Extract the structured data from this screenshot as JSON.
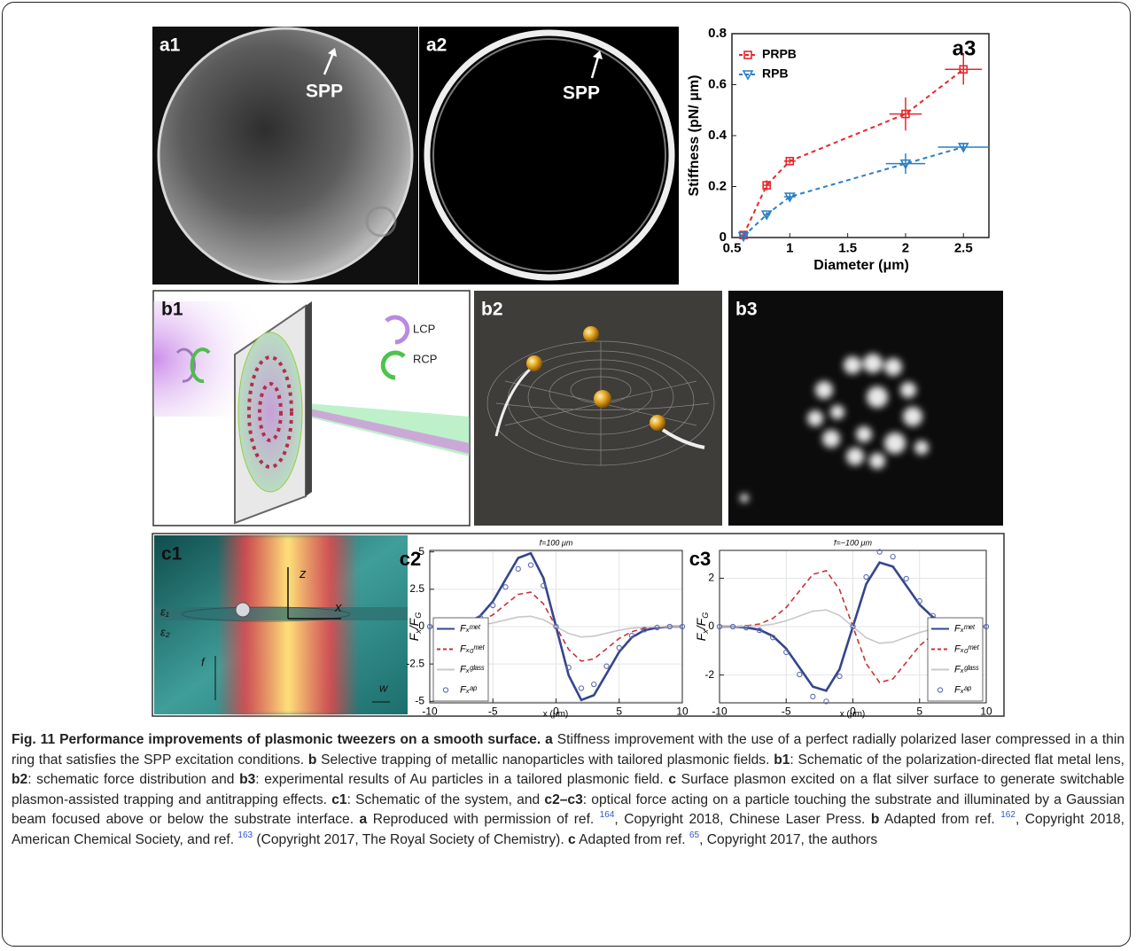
{
  "panels": {
    "a1": {
      "label": "a1",
      "annotation": "SPP"
    },
    "a2": {
      "label": "a2",
      "annotation": "SPP"
    },
    "b1": {
      "label": "b1",
      "legend": [
        "LCP",
        "RCP"
      ]
    },
    "b2": {
      "label": "b2"
    },
    "b3": {
      "label": "b3"
    },
    "c1": {
      "label": "c1",
      "axes": [
        "z",
        "x"
      ],
      "media": [
        "ε₁",
        "ε₂"
      ],
      "marks": [
        "f",
        "w"
      ]
    }
  },
  "chart_data": [
    {
      "type": "line",
      "label": "a3",
      "xlabel": "Diameter (μm)",
      "ylabel": [
        "Stiffness (pN/ μm)"
      ],
      "x": [
        0.6,
        0.8,
        1,
        2,
        2.5
      ],
      "xlim": [
        0.5,
        2.72
      ],
      "xticks": [
        0.5,
        1,
        1.5,
        2,
        2.5
      ],
      "ylim": [
        0,
        0.8
      ],
      "yticks": [
        0,
        0.2,
        0.4,
        0.6,
        0.8
      ],
      "grid": false,
      "legend": "upper left",
      "series": [
        {
          "name": "PRPB",
          "color": "#e8262a",
          "line": "dashed",
          "marker": "square",
          "values": [
            0.01,
            0.205,
            0.3,
            0.485,
            0.66
          ],
          "yerr": [
            0.01,
            0.02,
            0.01,
            0.065,
            0.06
          ],
          "xerr": [
            0.02,
            0.03,
            0.05,
            0.14,
            0.16
          ]
        },
        {
          "name": "RPB",
          "color": "#2a7fc4",
          "line": "dashed",
          "marker": "triangle",
          "values": [
            0.005,
            0.09,
            0.16,
            0.29,
            0.355
          ],
          "yerr": [
            0.005,
            0.01,
            0.015,
            0.04,
            0.015
          ],
          "xerr": [
            0.02,
            0.03,
            0.05,
            0.17,
            0.22
          ]
        }
      ]
    },
    {
      "type": "line",
      "label": "c2",
      "title": "f=100 μm",
      "xlabel": "x (μm)",
      "ylabel": [
        "F",
        "x",
        "/F",
        "G"
      ],
      "x": [
        -10,
        -9,
        -8,
        -7,
        -6,
        -5,
        -4,
        -3,
        -2,
        -1,
        0,
        1,
        2,
        3,
        4,
        5,
        6,
        7,
        8,
        9,
        10
      ],
      "xlim": [
        -10,
        10
      ],
      "xticks": [
        -10,
        -5,
        0,
        5,
        10
      ],
      "ylim": [
        -5.1,
        5.1
      ],
      "yticks": [
        -5,
        -2.5,
        0,
        2.5,
        5
      ],
      "grid": true,
      "legend": "lower left",
      "series": [
        {
          "name": "Fₓᵐᵉᵗ",
          "color": "#34468c",
          "line": "solid",
          "values": [
            0,
            0,
            0.07,
            0.24,
            0.72,
            1.69,
            3.15,
            4.59,
            4.91,
            3.26,
            0,
            -3.26,
            -4.91,
            -4.59,
            -3.15,
            -1.69,
            -0.72,
            -0.24,
            -0.07,
            0,
            0
          ]
        },
        {
          "name": "Fₓ₀ᵐᵉᵗ",
          "color": "#c8323a",
          "line": "dashed",
          "values": [
            0,
            0,
            0.03,
            0.11,
            0.34,
            0.79,
            1.48,
            2.16,
            2.31,
            1.53,
            0,
            -1.53,
            -2.31,
            -2.16,
            -1.48,
            -0.79,
            -0.34,
            -0.11,
            -0.03,
            0,
            0
          ]
        },
        {
          "name": "Fₓᵍˡᵃˢˢ",
          "color": "#c8c8c8",
          "line": "solid",
          "values": [
            0,
            0,
            0.01,
            0.04,
            0.1,
            0.24,
            0.44,
            0.64,
            0.69,
            0.46,
            0,
            -0.46,
            -0.69,
            -0.64,
            -0.44,
            -0.24,
            -0.1,
            -0.04,
            -0.01,
            0,
            0
          ]
        },
        {
          "name": "Fₓᵃᵖ",
          "color": "#5a6ab0",
          "marker": "circle",
          "values": [
            0,
            0,
            0.06,
            0.2,
            0.6,
            1.42,
            2.65,
            3.86,
            4.12,
            2.74,
            0,
            -2.74,
            -4.12,
            -3.86,
            -2.65,
            -1.42,
            -0.6,
            -0.2,
            -0.06,
            0,
            0
          ]
        }
      ]
    },
    {
      "type": "line",
      "label": "c3",
      "title": "f=−100 μm",
      "xlabel": "x (μm)",
      "ylabel": [
        "F",
        "x",
        "/F",
        "G"
      ],
      "x": [
        -10,
        -9,
        -8,
        -7,
        -6,
        -5,
        -4,
        -3,
        -2,
        -1,
        0,
        1,
        2,
        3,
        4,
        5,
        6,
        7,
        8,
        9,
        10
      ],
      "xlim": [
        -10,
        10
      ],
      "xticks": [
        -10,
        -5,
        0,
        5,
        10
      ],
      "ylim": [
        -3.15,
        3.15
      ],
      "yticks": [
        -2,
        0,
        2
      ],
      "grid": true,
      "legend": "lower right",
      "series": [
        {
          "name": "Fₓᵐᵉᵗ",
          "color": "#34468c",
          "line": "solid",
          "values": [
            0,
            0,
            -0.04,
            -0.13,
            -0.39,
            -0.91,
            -1.7,
            -2.48,
            -2.65,
            -1.76,
            0,
            1.76,
            2.65,
            2.48,
            1.7,
            0.91,
            0.39,
            0.13,
            0.04,
            0,
            0
          ]
        },
        {
          "name": "Fₓ₀ᵐᵉᵗ",
          "color": "#c8323a",
          "line": "dashed",
          "values": [
            0,
            0,
            0.03,
            0.11,
            0.34,
            0.79,
            1.48,
            2.16,
            2.31,
            1.53,
            0,
            -1.53,
            -2.31,
            -2.16,
            -1.48,
            -0.79,
            -0.34,
            -0.11,
            -0.03,
            0,
            0
          ]
        },
        {
          "name": "Fₓᵍˡᵃˢˢ",
          "color": "#c8c8c8",
          "line": "solid",
          "values": [
            0,
            0,
            0.01,
            0.04,
            0.1,
            0.24,
            0.44,
            0.64,
            0.69,
            0.46,
            0,
            -0.46,
            -0.69,
            -0.64,
            -0.44,
            -0.24,
            -0.1,
            -0.04,
            -0.01,
            0,
            0
          ]
        },
        {
          "name": "Fₓᵃᵖ",
          "color": "#5a6ab0",
          "marker": "circle",
          "values": [
            0,
            0,
            -0.04,
            -0.15,
            -0.45,
            -1.06,
            -1.98,
            -2.89,
            -3.09,
            -2.05,
            0,
            2.05,
            3.09,
            2.89,
            1.98,
            1.06,
            0.45,
            0.15,
            0.04,
            0,
            0
          ]
        }
      ]
    }
  ],
  "caption": [
    {
      "text": "Fig. 11 Performance improvements of plasmonic tweezers on a smooth surface.",
      "style": "bold"
    },
    {
      "text": " "
    },
    {
      "text": "a",
      "style": "bold"
    },
    {
      "text": " Stiffness improvement with the use of a perfect radially polarized laser compressed in a thin ring that satisfies the SPP excitation conditions. "
    },
    {
      "text": "b",
      "style": "bold"
    },
    {
      "text": " Selective trapping of metallic nanoparticles with tailored plasmonic fields. "
    },
    {
      "text": "b1",
      "style": "bold"
    },
    {
      "text": ": Schematic of the polarization-directed flat metal lens, "
    },
    {
      "text": "b2",
      "style": "bold"
    },
    {
      "text": ": schematic force distribution and "
    },
    {
      "text": "b3",
      "style": "bold"
    },
    {
      "text": ": experimental results of Au particles in a tailored plasmonic field. "
    },
    {
      "text": "c",
      "style": "bold"
    },
    {
      "text": " Surface plasmon excited on a flat silver surface to generate switchable plasmon-assisted trapping and antitrapping effects. "
    },
    {
      "text": "c1",
      "style": "bold"
    },
    {
      "text": ": Schematic of the system, and "
    },
    {
      "text": "c2–c3",
      "style": "bold"
    },
    {
      "text": ": optical force acting on a particle touching the substrate and illuminated by a Gaussian beam focused above or below the substrate interface. "
    },
    {
      "text": "a",
      "style": "bold"
    },
    {
      "text": " Reproduced with permission of ref. "
    },
    {
      "text": "164",
      "style": "ref"
    },
    {
      "text": ", Copyright 2018, Chinese Laser Press. "
    },
    {
      "text": "b",
      "style": "bold"
    },
    {
      "text": " Adapted from ref. "
    },
    {
      "text": "162",
      "style": "ref"
    },
    {
      "text": ", Copyright 2018, American Chemical Society, and ref. "
    },
    {
      "text": "163",
      "style": "ref"
    },
    {
      "text": " (Copyright 2017, The Royal Society of Chemistry). "
    },
    {
      "text": "c",
      "style": "bold"
    },
    {
      "text": " Adapted from ref. "
    },
    {
      "text": "65",
      "style": "ref"
    },
    {
      "text": ", Copyright 2017, the authors"
    }
  ]
}
